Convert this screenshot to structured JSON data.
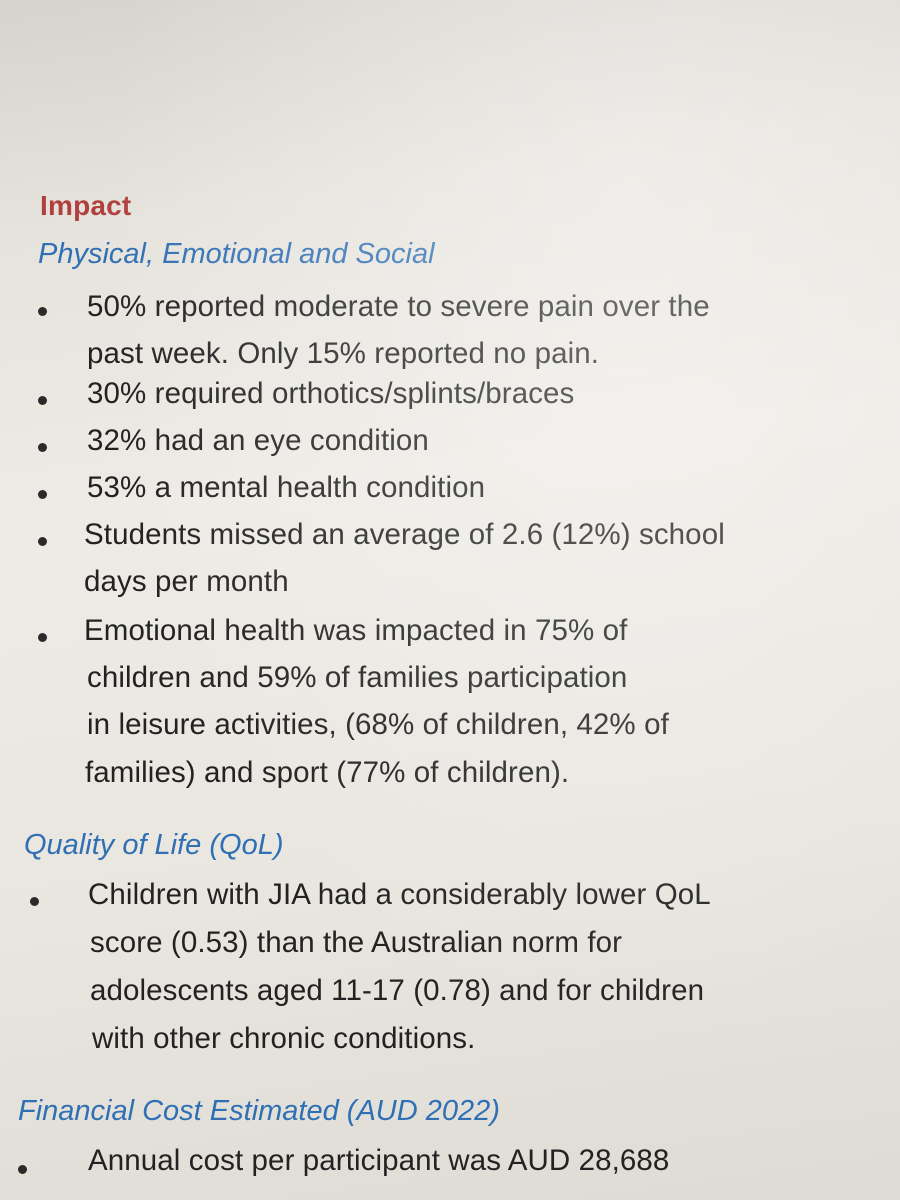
{
  "document": {
    "heading": "Impact",
    "sections": [
      {
        "title": "Physical, Emotional and Social",
        "items": [
          [
            "50% reported moderate to severe pain over the",
            "past week. Only 15% reported no pain."
          ],
          [
            "30% required orthotics/splints/braces"
          ],
          [
            "32% had an eye condition"
          ],
          [
            "53% a mental health condition"
          ],
          [
            "Students missed an average of 2.6 (12%) school",
            "days per month"
          ],
          [
            "Emotional health was impacted in 75% of",
            "children and 59% of families participation",
            "in leisure activities, (68% of children, 42% of",
            "families) and sport (77% of children)."
          ]
        ]
      },
      {
        "title": "Quality of Life (QoL)",
        "items": [
          [
            "Children with JIA had a considerably lower QoL",
            "score (0.53) than the Australian norm for",
            "adolescents aged 11-17 (0.78) and for children",
            "with other chronic conditions."
          ]
        ]
      },
      {
        "title": "Financial Cost Estimated (AUD 2022)",
        "items": [
          [
            "Annual cost per participant was AUD 28,688"
          ]
        ]
      }
    ]
  }
}
